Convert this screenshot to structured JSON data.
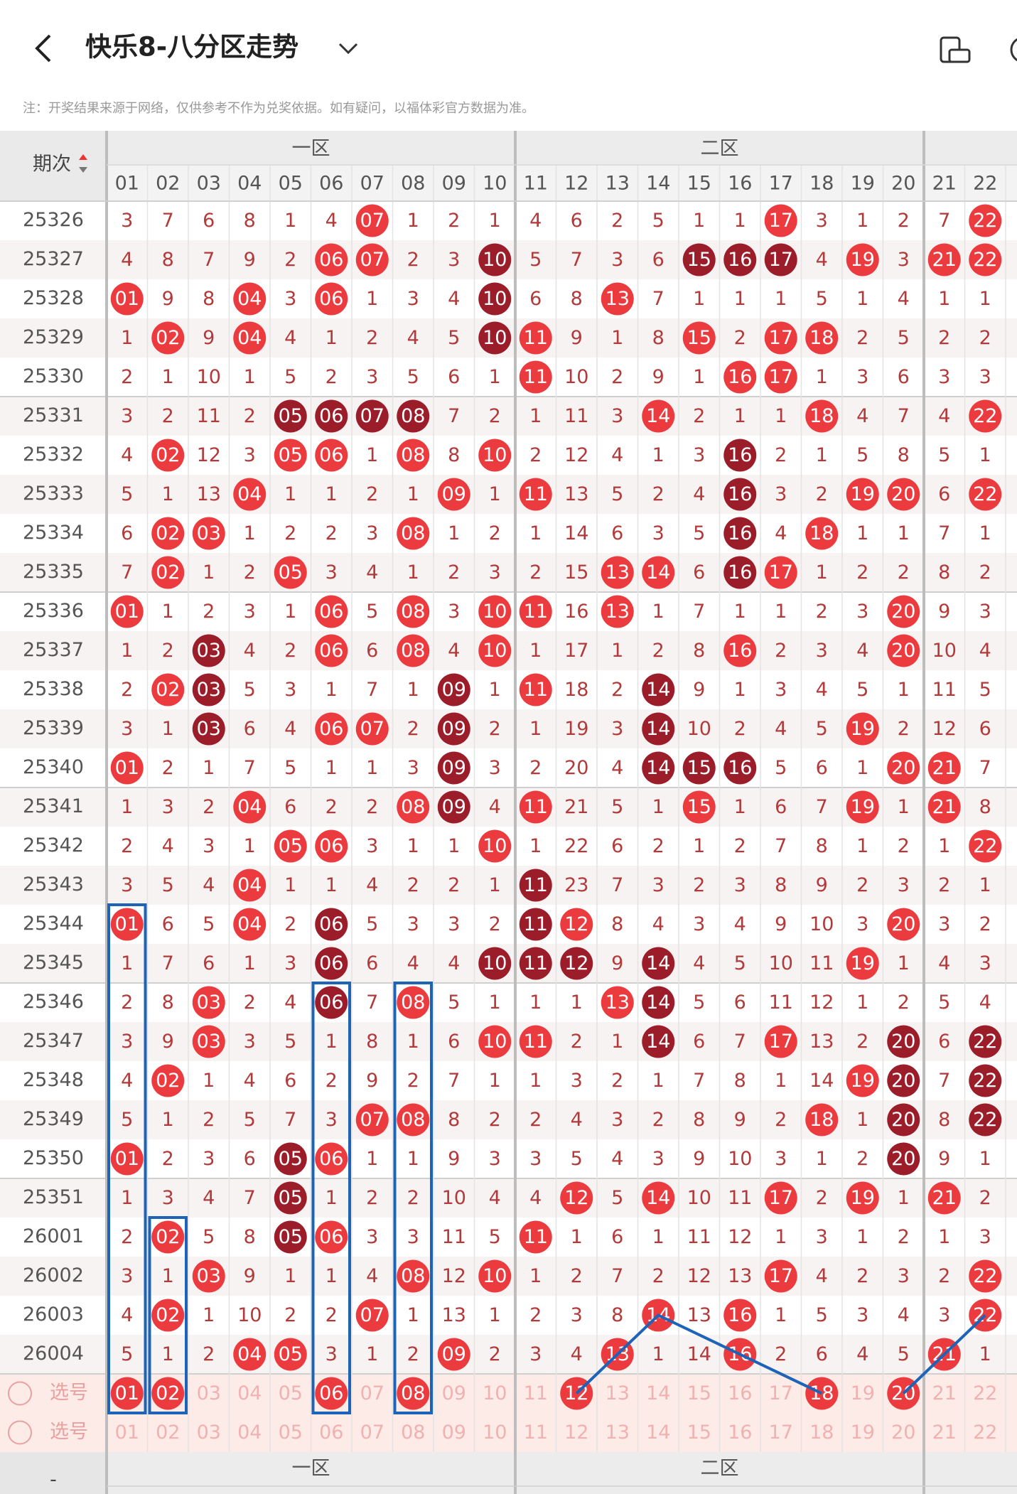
{
  "header": {
    "title": "快乐8-八分区走势",
    "note": "注：开奖结果来源于网络，仅供参考不作为兑奖依据。如有疑问，以福体彩官方数据为准。"
  },
  "table": {
    "issue_label": "期次",
    "zones": [
      "一区",
      "二区"
    ],
    "columns": [
      "01",
      "02",
      "03",
      "04",
      "05",
      "06",
      "07",
      "08",
      "09",
      "10",
      "11",
      "12",
      "13",
      "14",
      "15",
      "16",
      "17",
      "18",
      "19",
      "20",
      "21",
      "22"
    ],
    "rows": [
      {
        "issue": "25326",
        "cells": [
          "3",
          "7",
          "6",
          "8",
          "1",
          "4",
          "07",
          "1",
          "2",
          "1",
          "4",
          "6",
          "2",
          "5",
          "1",
          "1",
          "17",
          "3",
          "1",
          "2",
          "7",
          "22"
        ],
        "styles": "------r---|------r---|-r"
      },
      {
        "issue": "25327",
        "cells": [
          "4",
          "8",
          "7",
          "9",
          "2",
          "06",
          "07",
          "2",
          "3",
          "10",
          "5",
          "7",
          "3",
          "6",
          "15",
          "16",
          "17",
          "4",
          "19",
          "3",
          "21",
          "22"
        ],
        "styles": "-----rr--d|----ddd-r-|rr"
      },
      {
        "issue": "25328",
        "cells": [
          "01",
          "9",
          "8",
          "04",
          "3",
          "06",
          "1",
          "3",
          "4",
          "10",
          "6",
          "8",
          "13",
          "7",
          "1",
          "1",
          "1",
          "5",
          "1",
          "4",
          "1",
          "1"
        ],
        "styles": "r--r-r---d|--r-------|--"
      },
      {
        "issue": "25329",
        "cells": [
          "1",
          "02",
          "9",
          "04",
          "4",
          "1",
          "2",
          "4",
          "5",
          "10",
          "11",
          "9",
          "1",
          "8",
          "15",
          "2",
          "17",
          "18",
          "2",
          "5",
          "2",
          "2"
        ],
        "styles": "-r-r-----d|r---r-rr--|--"
      },
      {
        "issue": "25330",
        "cells": [
          "2",
          "1",
          "10",
          "1",
          "5",
          "2",
          "3",
          "5",
          "6",
          "1",
          "11",
          "10",
          "2",
          "9",
          "1",
          "16",
          "17",
          "1",
          "3",
          "6",
          "3",
          "3"
        ],
        "styles": "----------|r----rr---|--"
      },
      {
        "issue": "25331",
        "cells": [
          "3",
          "2",
          "11",
          "2",
          "05",
          "06",
          "07",
          "08",
          "7",
          "2",
          "1",
          "11",
          "3",
          "14",
          "2",
          "1",
          "1",
          "18",
          "4",
          "7",
          "4",
          "22"
        ],
        "styles": "----dddd--|---r---r--|-r"
      },
      {
        "issue": "25332",
        "cells": [
          "4",
          "02",
          "12",
          "3",
          "05",
          "06",
          "1",
          "08",
          "8",
          "10",
          "2",
          "12",
          "4",
          "1",
          "3",
          "16",
          "2",
          "1",
          "5",
          "8",
          "5",
          "1"
        ],
        "styles": "-r--rr-r-r|-----d----|--"
      },
      {
        "issue": "25333",
        "cells": [
          "5",
          "1",
          "13",
          "04",
          "1",
          "1",
          "2",
          "1",
          "09",
          "1",
          "11",
          "13",
          "5",
          "2",
          "4",
          "16",
          "3",
          "2",
          "19",
          "20",
          "6",
          "22"
        ],
        "styles": "---r----r-|r----d--rr|-r"
      },
      {
        "issue": "25334",
        "cells": [
          "6",
          "02",
          "03",
          "1",
          "2",
          "2",
          "3",
          "08",
          "1",
          "2",
          "1",
          "14",
          "6",
          "3",
          "5",
          "16",
          "4",
          "18",
          "1",
          "1",
          "7",
          "1"
        ],
        "styles": "-rr----r--|-----d-r--|--"
      },
      {
        "issue": "25335",
        "cells": [
          "7",
          "02",
          "1",
          "2",
          "05",
          "3",
          "4",
          "1",
          "2",
          "3",
          "2",
          "15",
          "13",
          "14",
          "6",
          "16",
          "17",
          "1",
          "2",
          "2",
          "8",
          "2"
        ],
        "styles": "-r--r-----|--rr-dr---|--"
      },
      {
        "issue": "25336",
        "cells": [
          "01",
          "1",
          "2",
          "3",
          "1",
          "06",
          "5",
          "08",
          "3",
          "10",
          "11",
          "16",
          "13",
          "1",
          "7",
          "1",
          "1",
          "2",
          "3",
          "20",
          "9",
          "3"
        ],
        "styles": "r----r-r-r|r-r------r|--"
      },
      {
        "issue": "25337",
        "cells": [
          "1",
          "2",
          "03",
          "4",
          "2",
          "06",
          "6",
          "08",
          "4",
          "10",
          "1",
          "17",
          "1",
          "2",
          "8",
          "16",
          "2",
          "3",
          "4",
          "20",
          "10",
          "4"
        ],
        "styles": "--d--r-r-r|-----r---r|--"
      },
      {
        "issue": "25338",
        "cells": [
          "2",
          "02",
          "03",
          "5",
          "3",
          "1",
          "7",
          "1",
          "09",
          "1",
          "11",
          "18",
          "2",
          "14",
          "9",
          "1",
          "3",
          "4",
          "5",
          "1",
          "11",
          "5"
        ],
        "styles": "-rd-----d-|r--d------|--"
      },
      {
        "issue": "25339",
        "cells": [
          "3",
          "1",
          "03",
          "6",
          "4",
          "06",
          "07",
          "2",
          "09",
          "2",
          "1",
          "19",
          "3",
          "14",
          "10",
          "2",
          "4",
          "5",
          "19",
          "2",
          "12",
          "6"
        ],
        "styles": "--d--rr-d-|---d----r-|--"
      },
      {
        "issue": "25340",
        "cells": [
          "01",
          "2",
          "1",
          "7",
          "5",
          "1",
          "1",
          "3",
          "09",
          "3",
          "2",
          "20",
          "4",
          "14",
          "15",
          "16",
          "5",
          "6",
          "1",
          "20",
          "21",
          "7"
        ],
        "styles": "r-------d-|---ddd---r|r-"
      },
      {
        "issue": "25341",
        "cells": [
          "1",
          "3",
          "2",
          "04",
          "6",
          "2",
          "2",
          "08",
          "09",
          "4",
          "11",
          "21",
          "5",
          "1",
          "15",
          "1",
          "6",
          "7",
          "19",
          "1",
          "21",
          "8"
        ],
        "styles": "---r---rd-|r---r---r-|r-"
      },
      {
        "issue": "25342",
        "cells": [
          "2",
          "4",
          "3",
          "1",
          "05",
          "06",
          "3",
          "1",
          "1",
          "10",
          "1",
          "22",
          "6",
          "2",
          "1",
          "2",
          "7",
          "8",
          "1",
          "2",
          "1",
          "22"
        ],
        "styles": "----rr---r|----------|-r"
      },
      {
        "issue": "25343",
        "cells": [
          "3",
          "5",
          "4",
          "04",
          "1",
          "1",
          "4",
          "2",
          "2",
          "1",
          "11",
          "23",
          "7",
          "3",
          "2",
          "3",
          "8",
          "9",
          "2",
          "3",
          "2",
          "1"
        ],
        "styles": "---r------|d---------|--"
      },
      {
        "issue": "25344",
        "cells": [
          "01",
          "6",
          "5",
          "04",
          "2",
          "06",
          "5",
          "3",
          "3",
          "2",
          "11",
          "12",
          "8",
          "4",
          "3",
          "4",
          "9",
          "10",
          "3",
          "20",
          "3",
          "2"
        ],
        "styles": "r--r-d----|dr-------r|--"
      },
      {
        "issue": "25345",
        "cells": [
          "1",
          "7",
          "6",
          "1",
          "3",
          "06",
          "6",
          "4",
          "4",
          "10",
          "11",
          "12",
          "9",
          "14",
          "4",
          "5",
          "10",
          "11",
          "19",
          "1",
          "4",
          "3"
        ],
        "styles": "-----d---d|dd-d----r-|--"
      },
      {
        "issue": "25346",
        "cells": [
          "2",
          "8",
          "03",
          "2",
          "4",
          "06",
          "7",
          "08",
          "5",
          "1",
          "1",
          "1",
          "13",
          "14",
          "5",
          "6",
          "11",
          "12",
          "1",
          "2",
          "5",
          "4"
        ],
        "styles": "--r--d-r--|--rd------|--"
      },
      {
        "issue": "25347",
        "cells": [
          "3",
          "9",
          "03",
          "3",
          "5",
          "1",
          "8",
          "1",
          "6",
          "10",
          "11",
          "2",
          "1",
          "14",
          "6",
          "7",
          "17",
          "13",
          "2",
          "20",
          "6",
          "22"
        ],
        "styles": "--r------r|r--d--r--d|-d"
      },
      {
        "issue": "25348",
        "cells": [
          "4",
          "02",
          "1",
          "4",
          "6",
          "2",
          "9",
          "2",
          "7",
          "1",
          "1",
          "3",
          "2",
          "1",
          "7",
          "8",
          "1",
          "14",
          "19",
          "20",
          "7",
          "22"
        ],
        "styles": "-r--------|--------rd|-d"
      },
      {
        "issue": "25349",
        "cells": [
          "5",
          "1",
          "2",
          "5",
          "7",
          "3",
          "07",
          "08",
          "8",
          "2",
          "2",
          "4",
          "3",
          "2",
          "8",
          "9",
          "2",
          "18",
          "1",
          "20",
          "8",
          "22"
        ],
        "styles": "------rr--|-------r-d|-d"
      },
      {
        "issue": "25350",
        "cells": [
          "01",
          "2",
          "3",
          "6",
          "05",
          "06",
          "1",
          "1",
          "9",
          "3",
          "3",
          "5",
          "4",
          "3",
          "9",
          "10",
          "3",
          "1",
          "2",
          "20",
          "9",
          "1"
        ],
        "styles": "r---dr----|---------d|--"
      },
      {
        "issue": "25351",
        "cells": [
          "1",
          "3",
          "4",
          "7",
          "05",
          "1",
          "2",
          "2",
          "10",
          "4",
          "4",
          "12",
          "5",
          "14",
          "10",
          "11",
          "17",
          "2",
          "19",
          "1",
          "21",
          "2"
        ],
        "styles": "----d-----|-r-r--r-r-|r-"
      },
      {
        "issue": "26001",
        "cells": [
          "2",
          "02",
          "5",
          "8",
          "05",
          "06",
          "3",
          "3",
          "11",
          "5",
          "11",
          "1",
          "6",
          "1",
          "11",
          "12",
          "1",
          "3",
          "1",
          "2",
          "1",
          "3"
        ],
        "styles": "-r--dr----|r---------|--"
      },
      {
        "issue": "26002",
        "cells": [
          "3",
          "1",
          "03",
          "9",
          "1",
          "1",
          "4",
          "08",
          "12",
          "10",
          "1",
          "2",
          "7",
          "2",
          "12",
          "13",
          "17",
          "4",
          "2",
          "3",
          "2",
          "22"
        ],
        "styles": "--r----r-r|------r---|-r"
      },
      {
        "issue": "26003",
        "cells": [
          "4",
          "02",
          "1",
          "10",
          "2",
          "2",
          "07",
          "1",
          "13",
          "1",
          "2",
          "3",
          "8",
          "14",
          "13",
          "16",
          "1",
          "5",
          "3",
          "4",
          "3",
          "22"
        ],
        "styles": "-r----r---|---r-r----|-r"
      },
      {
        "issue": "26004",
        "cells": [
          "5",
          "1",
          "2",
          "04",
          "05",
          "3",
          "1",
          "2",
          "09",
          "2",
          "3",
          "4",
          "13",
          "1",
          "14",
          "16",
          "2",
          "6",
          "4",
          "5",
          "21",
          "1"
        ],
        "styles": "---rr---r-|--r--r----|r-"
      }
    ],
    "select_rows": [
      {
        "label": "选号",
        "cells": [
          "01",
          "02",
          "03",
          "04",
          "05",
          "06",
          "07",
          "08",
          "09",
          "10",
          "11",
          "12",
          "13",
          "14",
          "15",
          "16",
          "17",
          "18",
          "19",
          "20",
          "21",
          "22"
        ],
        "styles": "rrfffrfrff|frfffffrfr|ff"
      },
      {
        "label": "选号",
        "cells": [
          "01",
          "02",
          "03",
          "04",
          "05",
          "06",
          "07",
          "08",
          "09",
          "10",
          "11",
          "12",
          "13",
          "14",
          "15",
          "16",
          "17",
          "18",
          "19",
          "20",
          "21",
          "22"
        ],
        "styles": "ffffffffff|ffffffffff|ff"
      }
    ]
  },
  "footer": {
    "label": "-",
    "zones": [
      "一区",
      "二区"
    ]
  }
}
